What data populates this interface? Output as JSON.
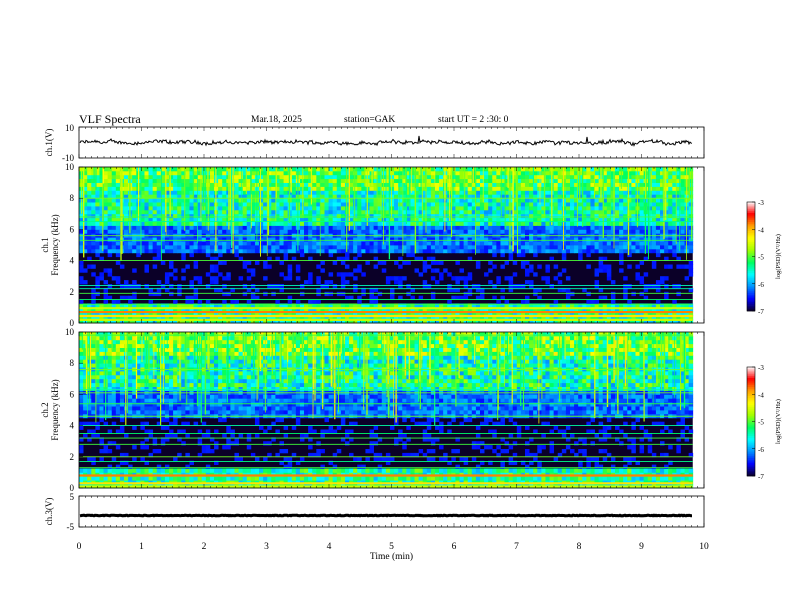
{
  "header": {
    "title": "VLF  Spectra",
    "date": "Mar.18, 2025",
    "station": "station=GAK",
    "start": "start  UT  =   2  :30: 0"
  },
  "colors": {
    "colormap": [
      "#0b0028",
      "#0000ff",
      "#0090ff",
      "#00ffff",
      "#00ff60",
      "#a0ff00",
      "#ffff00",
      "#ffa000",
      "#ff0000",
      "#ffffff"
    ],
    "trace": "#000000"
  },
  "chart_data": [
    {
      "id": "ch1-voltage",
      "type": "line",
      "ylabel": "ch.1(V)",
      "ylim": [
        -10,
        10
      ],
      "yticks": [
        "10",
        "-10"
      ],
      "series": [
        {
          "name": "ch.1",
          "mean": 0,
          "amplitude_approx": 2
        }
      ]
    },
    {
      "id": "ch1-spectrogram",
      "type": "heatmap",
      "ylabel": "ch.1\nFrequency (kHz)",
      "ylim": [
        0,
        10
      ],
      "yticks": [
        "0",
        "2",
        "4",
        "6",
        "8",
        "10"
      ],
      "colorbar": {
        "label": "log(PSD)(V²/Hz)",
        "range": [
          -7,
          -3
        ],
        "ticks": [
          "-3",
          "-4",
          "-5",
          "-6",
          "-7"
        ]
      },
      "bands_khz": [
        0.2,
        0.45,
        0.7,
        0.95,
        1.2,
        1.5,
        1.9,
        2.2,
        2.4,
        4.0,
        5.3,
        5.6,
        6.5,
        6.8,
        8.0
      ]
    },
    {
      "id": "ch2-spectrogram",
      "type": "heatmap",
      "ylabel": "ch.2\nFrequency (kHz)",
      "ylim": [
        0,
        10
      ],
      "yticks": [
        "0",
        "2",
        "4",
        "6",
        "8",
        "10"
      ],
      "colorbar": {
        "label": "log(PSD)(V²/Hz)",
        "range": [
          -7,
          -3
        ],
        "ticks": [
          "-3",
          "-4",
          "-5",
          "-6",
          "-7"
        ]
      },
      "bands_khz": [
        0.1,
        0.3,
        0.8,
        1.3,
        1.7,
        2.0,
        2.8,
        3.2,
        3.5,
        4.0,
        4.6,
        5.4,
        6.1,
        6.3,
        7.6,
        9.8
      ]
    },
    {
      "id": "ch3-voltage",
      "type": "line",
      "ylabel": "ch.3(V)",
      "ylim": [
        -5,
        5
      ],
      "yticks": [
        "5",
        "-5"
      ],
      "series": [
        {
          "name": "ch.3",
          "mean": -1.3,
          "amplitude_approx": 0.2
        }
      ]
    }
  ],
  "xaxis": {
    "xlabel": "Time  (min)",
    "xlim": [
      0,
      10
    ],
    "ticks": [
      "0",
      "1",
      "2",
      "3",
      "4",
      "5",
      "6",
      "7",
      "8",
      "9",
      "10"
    ],
    "data_end": 9.82
  }
}
